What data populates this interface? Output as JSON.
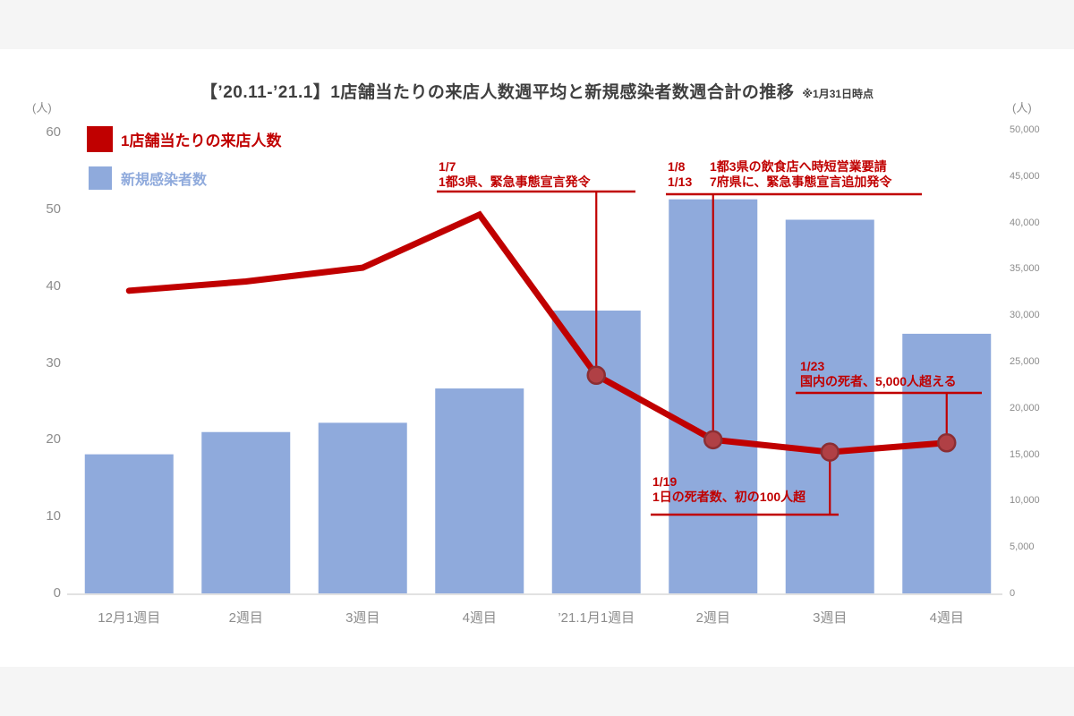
{
  "header": {
    "title": "【’20.11-’21.1】1店舗当たりの来店人数週平均と新規感染者数週合計の推移",
    "note": "※1月31日時点"
  },
  "legend": [
    {
      "label": "1店舗当たりの来店人数",
      "color": "#c00000"
    },
    {
      "label": "新規感染者数",
      "color": "#8faadc"
    }
  ],
  "axes": {
    "left": {
      "unit": "(人)",
      "ticks": [
        60,
        50,
        40,
        30,
        20,
        10,
        0
      ]
    },
    "right": {
      "unit": "(人)",
      "ticks": [
        "50,000",
        "45,000",
        "40,000",
        "35,000",
        "30,000",
        "25,000",
        "20,000",
        "15,000",
        "10,000",
        "5,000",
        "0"
      ]
    }
  },
  "chart_data": {
    "type": "bar+line combo",
    "title": "【’20.11-’21.1】1店舗当たりの来店人数週平均と新規感染者数週合計の推移",
    "subtitle": "※1月31日時点",
    "categories": [
      "12月1週目",
      "2週目",
      "3週目",
      "4週目",
      "’21.1月1週目",
      "2週目",
      "3週目",
      "4週目"
    ],
    "series": [
      {
        "name": "1店舗当たりの来店人数",
        "type": "line",
        "axis": "left",
        "color": "#c00000",
        "values": [
          39.4,
          40.6,
          42.4,
          49.3,
          28.4,
          20.0,
          18.4,
          19.6
        ],
        "markers_from_index": 4,
        "marker_fill": "#b04045",
        "marker_stroke": "#8b2e33"
      },
      {
        "name": "新規感染者数",
        "type": "bar",
        "axis": "right",
        "color": "#8faadc",
        "values": [
          15000,
          17400,
          18400,
          22100,
          30500,
          42500,
          40300,
          28000
        ]
      }
    ],
    "left_ylim": [
      0,
      60
    ],
    "right_ylim": [
      0,
      50000
    ],
    "grid": false,
    "legend_position": "top-left"
  },
  "annotations": {
    "a1": {
      "line1": "1/7",
      "line2": "1都3県、緊急事態宣言発令"
    },
    "a2": {
      "row1_date": "1/8",
      "row1_text": "1都3県の飲食店へ時短営業要請",
      "row2_date": "1/13",
      "row2_text": "7府県に、緊急事態宣言追加発令"
    },
    "a3": {
      "line1": "1/23",
      "line2": "国内の死者、5,000人超える"
    },
    "a4": {
      "line1": "1/19",
      "line2": "1日の死者数、初の100人超"
    }
  }
}
